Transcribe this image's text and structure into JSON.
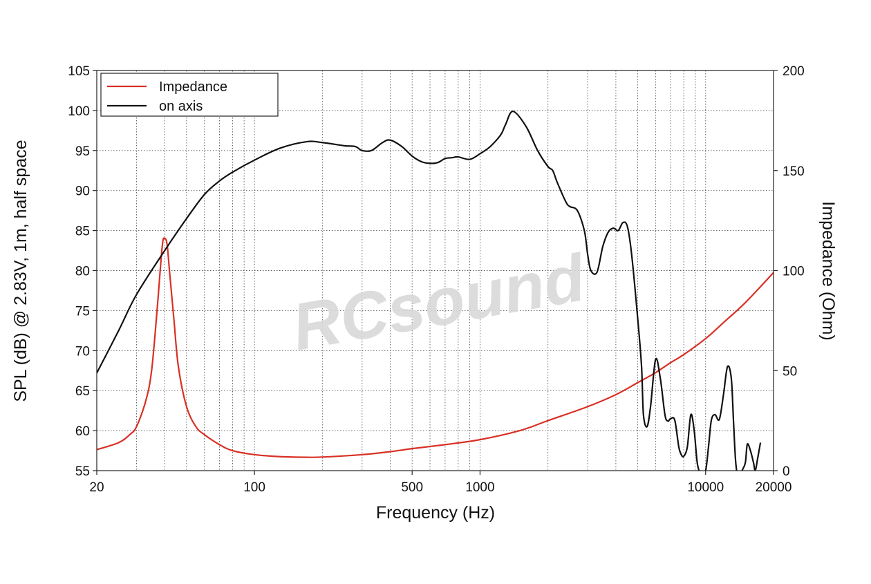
{
  "chart_data": {
    "type": "line",
    "xlabel": "Frequency (Hz)",
    "ylabel": "SPL (dB) @ 2.83V, 1m, half space",
    "y2label": "Impedance (Ohm)",
    "xscale": "log",
    "xlim": [
      20,
      20000
    ],
    "ylim": [
      55,
      105
    ],
    "y2lim": [
      0,
      200
    ],
    "x_ticks": [
      20,
      100,
      500,
      1000,
      10000,
      20000
    ],
    "y_ticks": [
      55,
      60,
      65,
      70,
      75,
      80,
      85,
      90,
      95,
      100,
      105
    ],
    "y2_ticks": [
      0,
      50,
      100,
      150,
      200
    ],
    "grid": true,
    "legend_position": "top-left",
    "watermark": "RCsound",
    "series": [
      {
        "name": "Impedance",
        "axis": "right",
        "color": "#d93025",
        "x": [
          20,
          25,
          28,
          30,
          33,
          35,
          37,
          39,
          40,
          41,
          42,
          44,
          46,
          50,
          55,
          60,
          70,
          80,
          100,
          130,
          170,
          200,
          300,
          400,
          500,
          700,
          1000,
          1500,
          2000,
          3000,
          4000,
          5000,
          6000,
          7000,
          8000,
          10000,
          12000,
          15000,
          20000
        ],
        "values": [
          10.5,
          14,
          18,
          22,
          35,
          50,
          80,
          112,
          116,
          113,
          100,
          75,
          52,
          32,
          22,
          18,
          13,
          10,
          8,
          7,
          6.7,
          6.8,
          8,
          9.5,
          11,
          13,
          15.5,
          20,
          25,
          32,
          38,
          44,
          49,
          54,
          58,
          66,
          74,
          84,
          99
        ]
      },
      {
        "name": "on axis",
        "axis": "left",
        "color": "#111111",
        "x": [
          20,
          25,
          30,
          40,
          50,
          60,
          70,
          80,
          100,
          130,
          170,
          200,
          250,
          280,
          300,
          330,
          370,
          400,
          450,
          500,
          550,
          600,
          650,
          700,
          750,
          800,
          900,
          1000,
          1100,
          1200,
          1250,
          1300,
          1400,
          1600,
          1800,
          2000,
          2100,
          2200,
          2400,
          2500,
          2700,
          2900,
          3000,
          3100,
          3300,
          3500,
          3700,
          3900,
          4100,
          4300,
          4500,
          4700,
          5000,
          5200,
          5300,
          5500,
          5700,
          6000,
          6300,
          6600,
          6800,
          7000,
          7300,
          7600,
          7800,
          8000,
          8300,
          8600,
          8900,
          9200,
          9600,
          10000,
          10300,
          10600,
          11000,
          11500,
          12000,
          12500,
          13000,
          13300,
          13600,
          14000,
          14500,
          15000,
          15300,
          15800,
          16300,
          16600,
          17000,
          17500
        ],
        "values": [
          67.2,
          72.5,
          77,
          82.5,
          86.5,
          89.5,
          91.2,
          92.3,
          93.8,
          95.3,
          96.1,
          96,
          95.6,
          95.5,
          95,
          95,
          96,
          96.3,
          95.5,
          94.3,
          93.6,
          93.4,
          93.5,
          94,
          94.1,
          94.2,
          93.9,
          94.6,
          95.4,
          96.5,
          97.2,
          98.3,
          99.9,
          98,
          95,
          93,
          92.5,
          91,
          88.6,
          88,
          87.5,
          85,
          82,
          80,
          79.8,
          83,
          84.8,
          85.3,
          85,
          86,
          85.5,
          82,
          74,
          68,
          62,
          60.5,
          63,
          68.9,
          66.5,
          62,
          61.2,
          61.5,
          61.3,
          58,
          57,
          56.8,
          58,
          62,
          60,
          55.8,
          54.5,
          55,
          58,
          61.3,
          62,
          61.4,
          64.5,
          68,
          66.5,
          61,
          56,
          54,
          55,
          56,
          58.3,
          57.5,
          56,
          55,
          56.5,
          58.5
        ]
      }
    ]
  }
}
